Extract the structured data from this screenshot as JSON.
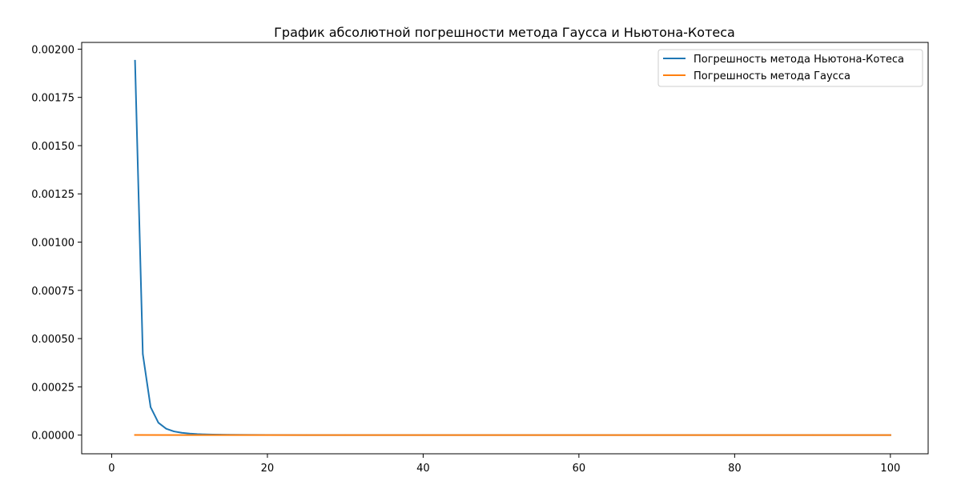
{
  "chart_data": {
    "type": "line",
    "title": "График абсолютной погрешности метода Гаусса и Ньютона-Котеса",
    "xlabel": "",
    "ylabel": "",
    "xlim": [
      -3.85,
      104.85
    ],
    "ylim": [
      -9.69e-05,
      0.0020349
    ],
    "xticks": [
      0,
      20,
      40,
      60,
      80,
      100
    ],
    "xtick_labels": [
      "0",
      "20",
      "40",
      "60",
      "80",
      "100"
    ],
    "yticks": [
      0.0,
      0.00025,
      0.0005,
      0.00075,
      0.001,
      0.00125,
      0.0015,
      0.00175,
      0.002
    ],
    "ytick_labels": [
      "0.00000",
      "0.00025",
      "0.00050",
      "0.00075",
      "0.00100",
      "0.00125",
      "0.00150",
      "0.00175",
      "0.00200"
    ],
    "grid": false,
    "legend_position": "top-right",
    "series": [
      {
        "name": "Погрешность метода Ньютона-Котеса",
        "color": "#1f77b4",
        "x": [
          3,
          4,
          5,
          6,
          7,
          8,
          9,
          10,
          11,
          12,
          13,
          14,
          15,
          17,
          20,
          25,
          30,
          40,
          50,
          60,
          70,
          80,
          90,
          100
        ],
        "y": [
          0.00194,
          0.00042,
          0.000145,
          6.4e-05,
          3.3e-05,
          1.9e-05,
          1.2e-05,
          7.8e-06,
          5.3e-06,
          3.7e-06,
          2.7e-06,
          2e-06,
          1.5e-06,
          9e-07,
          5e-07,
          2e-07,
          1e-07,
          4e-08,
          2e-08,
          1e-08,
          6e-09,
          4e-09,
          3e-09,
          2e-09
        ]
      },
      {
        "name": "Погрешность метода Гаусса",
        "color": "#ff7f0e",
        "x": [
          3,
          10,
          20,
          30,
          40,
          50,
          60,
          70,
          80,
          90,
          100
        ],
        "y": [
          3e-07,
          0.0,
          0.0,
          0.0,
          0.0,
          0.0,
          0.0,
          0.0,
          0.0,
          0.0,
          0.0
        ]
      }
    ]
  }
}
